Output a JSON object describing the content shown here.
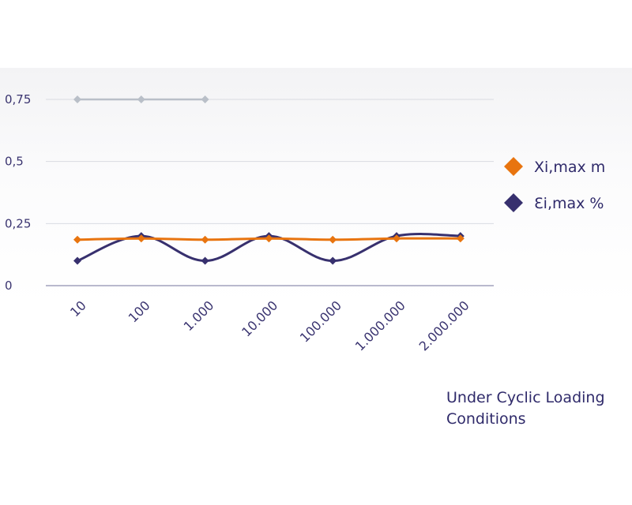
{
  "chart_data": {
    "type": "line",
    "categories": [
      "10",
      "100",
      "1.000",
      "10.000",
      "100.000",
      "1.000.000",
      "2.000.000"
    ],
    "ylim": [
      0,
      0.75
    ],
    "y_ticks": [
      "0",
      "0,25",
      "0,5",
      "0,75"
    ],
    "y_tick_values": [
      0,
      0.25,
      0.5,
      0.75
    ],
    "grid": true,
    "legend_position": "right",
    "series": [
      {
        "name": "Xi,max m",
        "color": "#e8740f",
        "values": [
          0.185,
          0.19,
          0.185,
          0.19,
          0.185,
          0.19,
          0.19
        ],
        "marker": "diamond",
        "smooth": true
      },
      {
        "name": "Ɛi,max %",
        "color": "#37306e",
        "values": [
          0.1,
          0.2,
          0.1,
          0.2,
          0.1,
          0.2,
          0.2
        ],
        "marker": "diamond",
        "smooth": true
      },
      {
        "color": "#b9bfc8",
        "values": [
          0.75,
          0.75,
          0.75,
          null,
          null,
          null,
          null
        ],
        "marker": "diamond",
        "smooth": false
      }
    ]
  },
  "caption": "Under Cyclic Loading Conditions"
}
